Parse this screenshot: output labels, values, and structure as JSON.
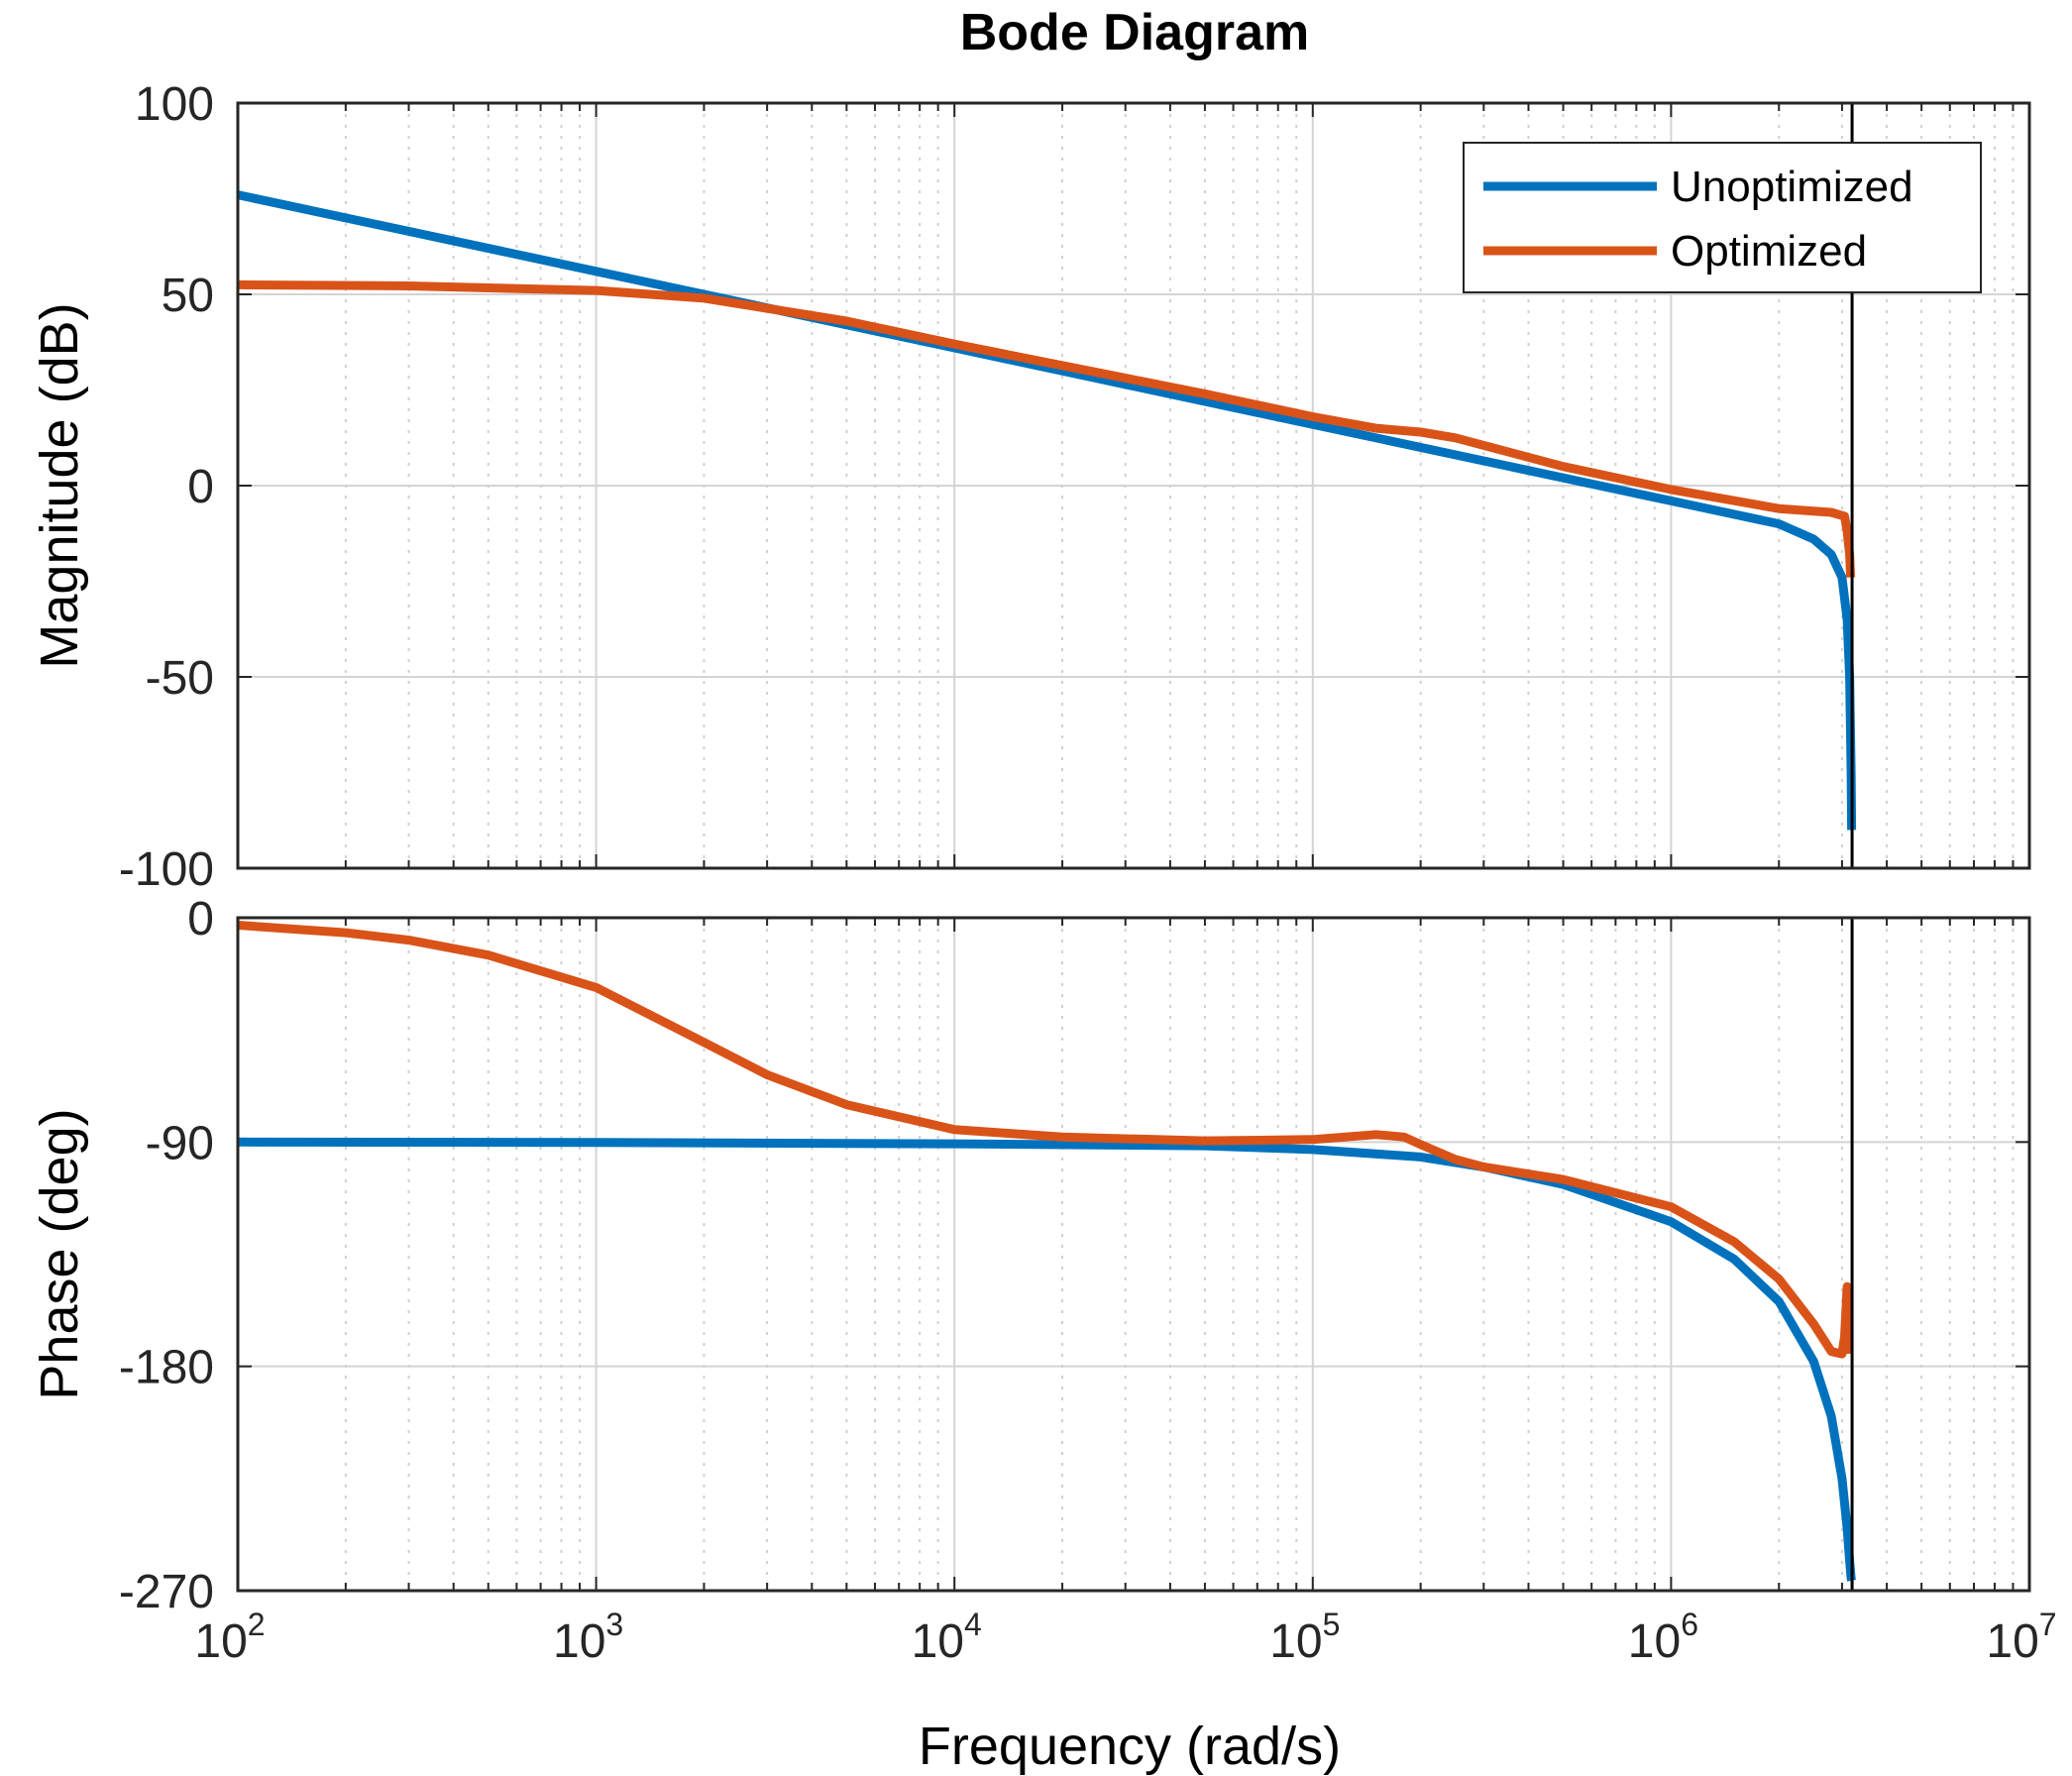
{
  "chart_data": {
    "type": "line",
    "title": "Bode Diagram",
    "xlabel": "Frequency  (rad/s)",
    "xscale": "log",
    "xlim": [
      100,
      10000000
    ],
    "x_ticks": [
      {
        "value": 100,
        "base": "10",
        "exp": "2"
      },
      {
        "value": 1000,
        "base": "10",
        "exp": "3"
      },
      {
        "value": 10000,
        "base": "10",
        "exp": "4"
      },
      {
        "value": 100000,
        "base": "10",
        "exp": "5"
      },
      {
        "value": 1000000,
        "base": "10",
        "exp": "6"
      },
      {
        "value": 10000000,
        "base": "10",
        "exp": "7"
      }
    ],
    "grid": true,
    "legend": {
      "placement": "top-right",
      "entries": [
        "Unoptimized",
        "Optimized"
      ]
    },
    "colors": {
      "Unoptimized": "#0072bd",
      "Optimized": "#d95319"
    },
    "marker_line": {
      "frequency": 3200000,
      "color": "#000000"
    },
    "magnitude": {
      "ylabel": "Magnitude (dB)",
      "ylim": [
        -100,
        100
      ],
      "yticks": [
        100,
        50,
        0,
        -50,
        -100
      ],
      "ytick_labels": [
        "100",
        "50",
        "0",
        "-50",
        "-100"
      ],
      "series": [
        {
          "name": "Unoptimized",
          "x": [
            100,
            1000,
            10000,
            100000,
            1000000,
            2000000,
            2500000,
            2800000,
            3000000,
            3100000,
            3150000,
            3180000,
            3190000
          ],
          "y": [
            76,
            56,
            36,
            16,
            -4,
            -10,
            -14,
            -18,
            -24,
            -35,
            -50,
            -75,
            -90
          ]
        },
        {
          "name": "Optimized",
          "x": [
            100,
            300,
            1000,
            2000,
            5000,
            10000,
            50000,
            100000,
            150000,
            200000,
            250000,
            500000,
            1000000,
            2000000,
            2800000,
            3050000,
            3100000,
            3150000,
            3170000
          ],
          "y": [
            52.5,
            52.2,
            51,
            49,
            43,
            37,
            24,
            18,
            15,
            14,
            12.5,
            5,
            -1,
            -6,
            -7,
            -8,
            -12,
            -18,
            -24
          ]
        }
      ]
    },
    "phase": {
      "ylabel": "Phase (deg)",
      "ylim": [
        -270,
        0
      ],
      "yticks": [
        0,
        -90,
        -180,
        -270
      ],
      "ytick_labels": [
        "0",
        "-90",
        "-180",
        "-270"
      ],
      "series": [
        {
          "name": "Unoptimized",
          "x": [
            100,
            1000,
            10000,
            50000,
            100000,
            200000,
            300000,
            500000,
            1000000,
            1500000,
            2000000,
            2500000,
            2800000,
            3000000,
            3100000,
            3150000,
            3180000,
            3190000
          ],
          "y": [
            -90,
            -90.2,
            -90.7,
            -91.5,
            -93,
            -96,
            -100,
            -107,
            -122,
            -137,
            -154,
            -178,
            -200,
            -225,
            -245,
            -258,
            -265,
            -266
          ]
        },
        {
          "name": "Optimized",
          "x": [
            100,
            200,
            300,
            500,
            1000,
            2000,
            3000,
            5000,
            10000,
            20000,
            50000,
            100000,
            150000,
            180000,
            200000,
            250000,
            300000,
            500000,
            1000000,
            1500000,
            2000000,
            2500000,
            2800000,
            3000000,
            3050000,
            3100000,
            3120000
          ],
          "y": [
            -3,
            -6,
            -9,
            -15,
            -28,
            -50,
            -63,
            -75,
            -85,
            -88,
            -89.5,
            -89,
            -87,
            -88,
            -91,
            -97,
            -100,
            -105,
            -116,
            -130,
            -145,
            -163,
            -174,
            -175,
            -168,
            -148,
            -175
          ]
        }
      ]
    }
  }
}
